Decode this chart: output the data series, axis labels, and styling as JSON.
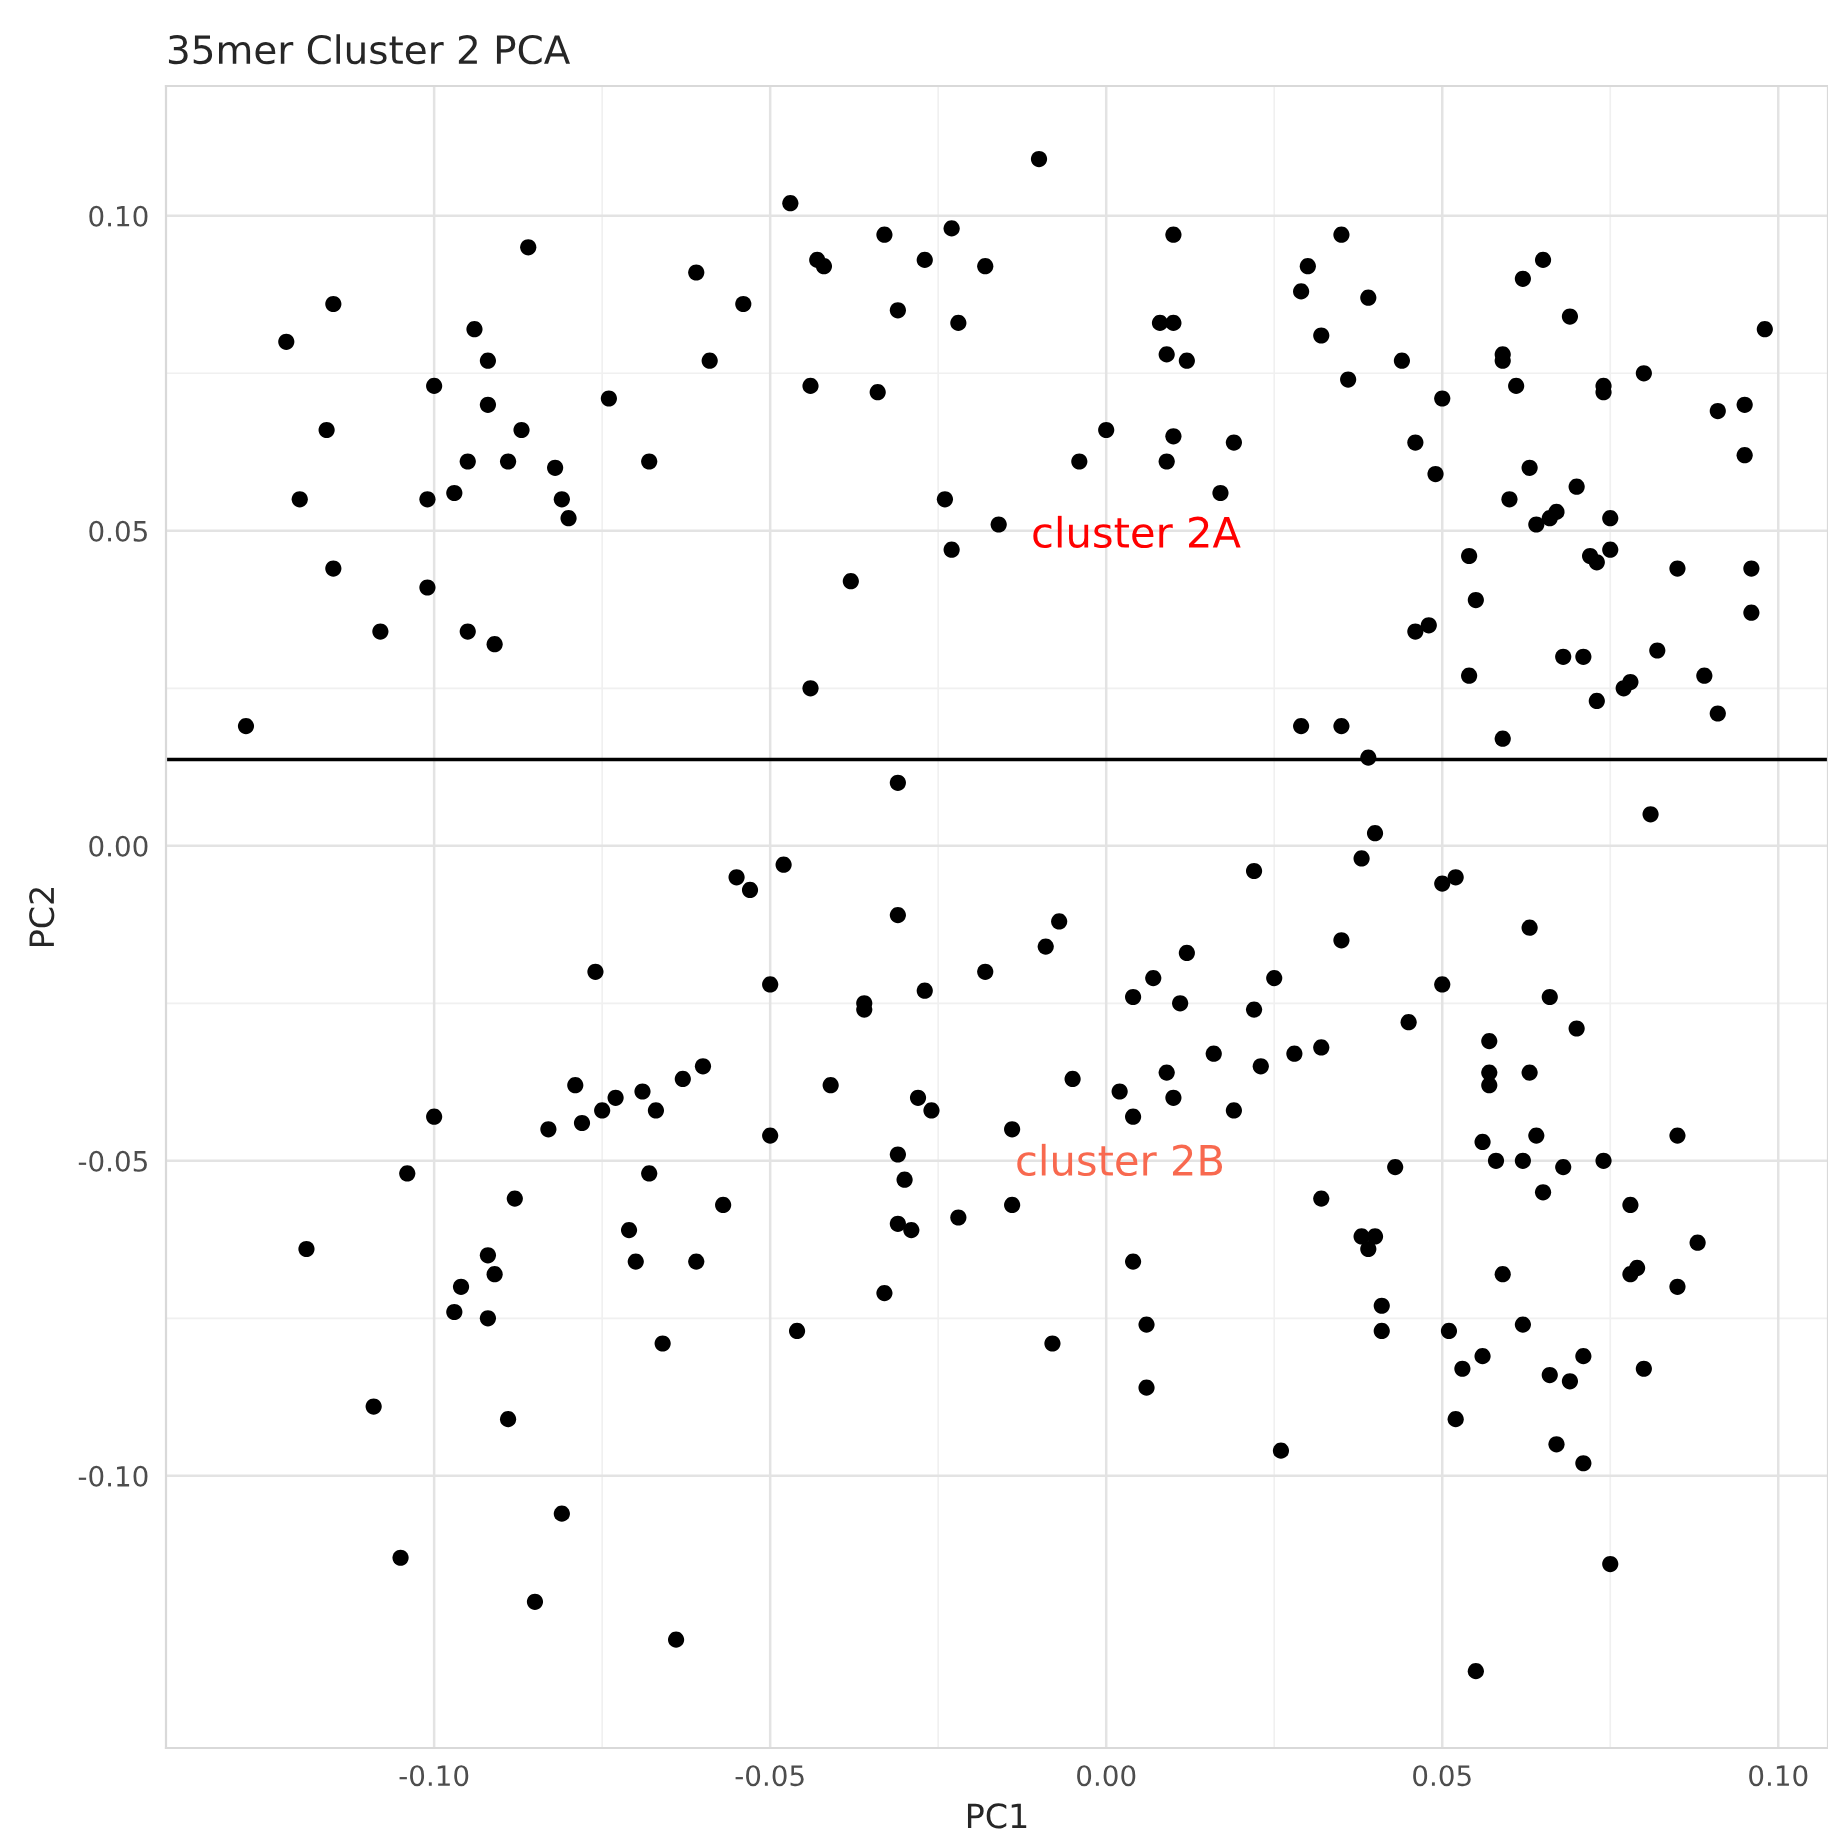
{
  "chart_data": {
    "type": "scatter",
    "title": "35mer Cluster 2 PCA",
    "xlabel": "PC1",
    "ylabel": "PC2",
    "series": [
      {
        "color": "#000000",
        "x": [
          -0.128,
          -0.122,
          -0.12,
          -0.116,
          -0.115,
          -0.115,
          -0.108,
          -0.101,
          -0.101,
          -0.1,
          -0.097,
          -0.095,
          -0.095,
          -0.094,
          -0.092,
          -0.092,
          -0.091,
          -0.089,
          -0.087,
          -0.086,
          -0.082,
          -0.081,
          -0.08,
          -0.074,
          -0.068,
          -0.061,
          -0.059,
          -0.054,
          -0.047,
          -0.043,
          -0.044,
          -0.044,
          -0.042,
          -0.038,
          -0.034,
          -0.033,
          -0.031,
          -0.027,
          -0.023,
          -0.022,
          -0.024,
          -0.023,
          -0.018,
          -0.016,
          -0.01,
          -0.004,
          0.0,
          0.008,
          0.01,
          0.01,
          0.009,
          0.01,
          0.009,
          0.012,
          0.017,
          0.019,
          0.029,
          0.03,
          0.032,
          0.035,
          0.036,
          0.039,
          0.044,
          0.046,
          0.049,
          0.05,
          0.046,
          0.048,
          0.054,
          0.055,
          0.054,
          0.059,
          0.059,
          0.06,
          0.061,
          0.062,
          0.063,
          0.064,
          0.065,
          0.066,
          0.067,
          0.068,
          0.069,
          0.07,
          0.071,
          0.072,
          0.073,
          0.073,
          0.074,
          0.074,
          0.075,
          0.075,
          0.077,
          0.078,
          0.08,
          0.082,
          0.085,
          0.089,
          0.091,
          0.091,
          0.095,
          0.095,
          0.096,
          0.096,
          0.098,
          0.029,
          0.035,
          0.039,
          0.059,
          0.04,
          -0.031,
          0.038,
          0.05,
          0.052,
          0.022,
          0.081,
          -0.119,
          -0.109,
          -0.105,
          -0.104,
          -0.1,
          -0.097,
          -0.096,
          -0.092,
          -0.092,
          -0.091,
          -0.089,
          -0.088,
          -0.085,
          -0.083,
          -0.081,
          -0.079,
          -0.078,
          -0.076,
          -0.075,
          -0.073,
          -0.071,
          -0.07,
          -0.069,
          -0.068,
          -0.067,
          -0.066,
          -0.064,
          -0.063,
          -0.061,
          -0.06,
          -0.057,
          -0.055,
          -0.053,
          -0.05,
          -0.05,
          -0.048,
          -0.046,
          -0.041,
          -0.036,
          -0.036,
          -0.033,
          -0.031,
          -0.031,
          -0.031,
          -0.03,
          -0.029,
          -0.028,
          -0.027,
          -0.026,
          -0.022,
          -0.018,
          -0.014,
          -0.014,
          -0.009,
          -0.008,
          -0.007,
          -0.005,
          0.002,
          0.004,
          0.004,
          0.004,
          0.006,
          0.006,
          0.007,
          0.009,
          0.01,
          0.011,
          0.012,
          0.016,
          0.019,
          0.022,
          0.023,
          0.025,
          0.026,
          0.028,
          0.032,
          0.032,
          0.035,
          0.038,
          0.039,
          0.04,
          0.041,
          0.041,
          0.043,
          0.045,
          0.05,
          0.051,
          0.052,
          0.053,
          0.055,
          0.056,
          0.056,
          0.057,
          0.057,
          0.057,
          0.058,
          0.059,
          0.062,
          0.062,
          0.063,
          0.063,
          0.064,
          0.065,
          0.066,
          0.066,
          0.067,
          0.068,
          0.069,
          0.07,
          0.071,
          0.071,
          0.074,
          0.075,
          0.078,
          0.078,
          0.079,
          0.08,
          0.085,
          0.085,
          0.088
        ],
        "values": [
          0.019,
          0.08,
          0.055,
          0.066,
          0.086,
          0.044,
          0.034,
          0.041,
          0.055,
          0.073,
          0.056,
          0.034,
          0.061,
          0.082,
          0.077,
          0.07,
          0.032,
          0.061,
          0.066,
          0.095,
          0.06,
          0.055,
          0.052,
          0.071,
          0.061,
          0.091,
          0.077,
          0.086,
          0.102,
          0.093,
          0.073,
          0.025,
          0.092,
          0.042,
          0.072,
          0.097,
          0.085,
          0.093,
          0.098,
          0.083,
          0.055,
          0.047,
          0.092,
          0.051,
          0.109,
          0.061,
          0.066,
          0.083,
          0.083,
          0.097,
          0.078,
          0.065,
          0.061,
          0.077,
          0.056,
          0.064,
          0.088,
          0.092,
          0.081,
          0.097,
          0.074,
          0.087,
          0.077,
          0.064,
          0.059,
          0.071,
          0.034,
          0.035,
          0.046,
          0.039,
          0.027,
          0.078,
          0.077,
          0.055,
          0.073,
          0.09,
          0.06,
          0.051,
          0.093,
          0.052,
          0.053,
          0.03,
          0.084,
          0.057,
          0.03,
          0.046,
          0.045,
          0.023,
          0.073,
          0.072,
          0.052,
          0.047,
          0.025,
          0.026,
          0.075,
          0.031,
          0.044,
          0.027,
          0.069,
          0.021,
          0.062,
          0.07,
          0.044,
          0.037,
          0.082,
          0.019,
          0.019,
          0.014,
          0.017,
          0.002,
          0.01,
          -0.002,
          -0.006,
          -0.005,
          -0.004,
          0.005,
          -0.064,
          -0.089,
          -0.113,
          -0.052,
          -0.043,
          -0.074,
          -0.07,
          -0.065,
          -0.075,
          -0.068,
          -0.091,
          -0.056,
          -0.12,
          -0.045,
          -0.106,
          -0.038,
          -0.044,
          -0.02,
          -0.042,
          -0.04,
          -0.061,
          -0.066,
          -0.039,
          -0.052,
          -0.042,
          -0.079,
          -0.126,
          -0.037,
          -0.066,
          -0.035,
          -0.057,
          -0.005,
          -0.007,
          -0.022,
          -0.046,
          -0.003,
          -0.077,
          -0.038,
          -0.025,
          -0.026,
          -0.071,
          -0.011,
          -0.049,
          -0.06,
          -0.053,
          -0.061,
          -0.04,
          -0.023,
          -0.042,
          -0.059,
          -0.02,
          -0.045,
          -0.057,
          -0.016,
          -0.079,
          -0.012,
          -0.037,
          -0.039,
          -0.024,
          -0.043,
          -0.066,
          -0.076,
          -0.086,
          -0.021,
          -0.036,
          -0.04,
          -0.025,
          -0.017,
          -0.033,
          -0.042,
          -0.026,
          -0.035,
          -0.021,
          -0.096,
          -0.033,
          -0.032,
          -0.056,
          -0.015,
          -0.062,
          -0.064,
          -0.062,
          -0.073,
          -0.077,
          -0.051,
          -0.028,
          -0.022,
          -0.077,
          -0.091,
          -0.083,
          -0.131,
          -0.047,
          -0.081,
          -0.036,
          -0.031,
          -0.038,
          -0.05,
          -0.068,
          -0.05,
          -0.076,
          -0.013,
          -0.036,
          -0.046,
          -0.055,
          -0.084,
          -0.024,
          -0.095,
          -0.051,
          -0.085,
          -0.029,
          -0.081,
          -0.098,
          -0.05,
          -0.114,
          -0.068,
          -0.057,
          -0.067,
          -0.083,
          -0.046,
          -0.07,
          -0.063
        ]
      }
    ],
    "xlim": [
      -0.1399,
      0.1074
    ],
    "ylim": [
      -0.1432,
      0.1206
    ],
    "xticks": [
      {
        "value": -0.1,
        "label": "-0.10"
      },
      {
        "value": -0.05,
        "label": "-0.05"
      },
      {
        "value": 0,
        "label": "0.00"
      },
      {
        "value": 0.05,
        "label": "0.05"
      },
      {
        "value": 0.1,
        "label": "0.10"
      }
    ],
    "yticks": [
      {
        "value": -0.1,
        "label": "-0.10"
      },
      {
        "value": -0.05,
        "label": "-0.05"
      },
      {
        "value": 0,
        "label": "0.00"
      },
      {
        "value": 0.05,
        "label": "0.05"
      },
      {
        "value": 0.1,
        "label": "0.10"
      }
    ],
    "ref_lines": [
      {
        "axis": "y",
        "value": 0.0137,
        "color": "#000000"
      }
    ],
    "annotations": [
      "cluster 2A",
      "cluster 2B"
    ],
    "grid": true,
    "marker": "circle",
    "legend": false
  }
}
